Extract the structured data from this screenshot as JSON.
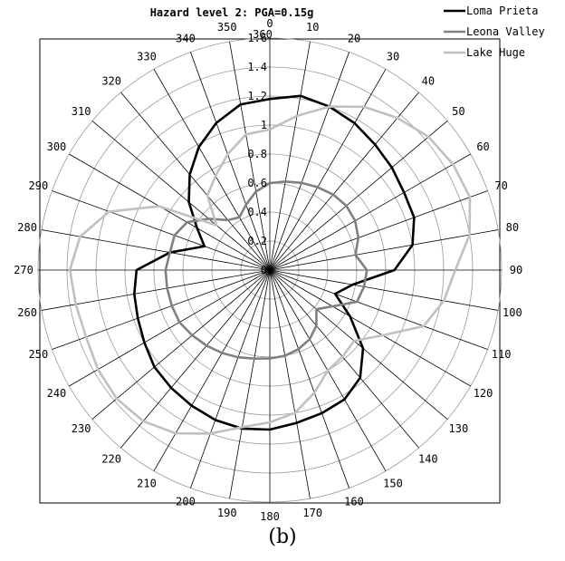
{
  "caption": "(b)",
  "chart_data": {
    "type": "polar-line",
    "title": "Hazard level 2: PGA=0.15g",
    "radial_range": [
      0,
      1.6
    ],
    "radial_ticks": [
      "0",
      "0.2",
      "0.4",
      "0.6",
      "0.8",
      "1",
      "1.2",
      "1.4",
      "1.6"
    ],
    "angle_ticks": [
      "0",
      "10",
      "20",
      "30",
      "40",
      "50",
      "60",
      "70",
      "80",
      "90",
      "100",
      "110",
      "120",
      "130",
      "140",
      "150",
      "160",
      "170",
      "180",
      "190",
      "200",
      "210",
      "220",
      "230",
      "240",
      "250",
      "260",
      "270",
      "280",
      "290",
      "300",
      "310",
      "320",
      "330",
      "340",
      "350",
      "360"
    ],
    "grid": true,
    "legend_position": "top-right",
    "angles": [
      0,
      10,
      20,
      30,
      40,
      50,
      60,
      70,
      80,
      90,
      100,
      110,
      120,
      130,
      140,
      150,
      160,
      170,
      180,
      190,
      200,
      210,
      220,
      230,
      240,
      250,
      260,
      270,
      280,
      290,
      300,
      310,
      320,
      330,
      340,
      350
    ],
    "series": [
      {
        "name": "Loma Prieta",
        "color": "#000000",
        "values": [
          1.18,
          1.22,
          1.2,
          1.17,
          1.13,
          1.1,
          1.07,
          1.06,
          1.0,
          0.86,
          0.58,
          0.48,
          0.64,
          0.84,
          0.97,
          1.03,
          1.05,
          1.07,
          1.1,
          1.11,
          1.1,
          1.08,
          1.06,
          1.04,
          1.0,
          0.97,
          0.95,
          0.92,
          0.7,
          0.48,
          0.58,
          0.73,
          0.86,
          0.98,
          1.08,
          1.16
        ]
      },
      {
        "name": "Leona Valley",
        "color": "#808080",
        "values": [
          0.6,
          0.62,
          0.64,
          0.66,
          0.68,
          0.69,
          0.68,
          0.65,
          0.6,
          0.67,
          0.66,
          0.64,
          0.5,
          0.42,
          0.5,
          0.55,
          0.58,
          0.6,
          0.61,
          0.62,
          0.64,
          0.66,
          0.68,
          0.7,
          0.72,
          0.72,
          0.72,
          0.72,
          0.7,
          0.7,
          0.66,
          0.55,
          0.45,
          0.42,
          0.48,
          0.55
        ]
      },
      {
        "name": "Lake Huge",
        "color": "#c0c0c0",
        "values": [
          0.97,
          1.08,
          1.2,
          1.3,
          1.37,
          1.43,
          1.46,
          1.47,
          1.4,
          1.28,
          1.22,
          1.13,
          0.9,
          0.76,
          0.78,
          0.8,
          0.9,
          1.0,
          1.05,
          1.1,
          1.2,
          1.3,
          1.36,
          1.38,
          1.37,
          1.35,
          1.36,
          1.38,
          1.33,
          1.18,
          0.88,
          0.48,
          0.67,
          0.75,
          0.85,
          0.95
        ]
      }
    ]
  }
}
